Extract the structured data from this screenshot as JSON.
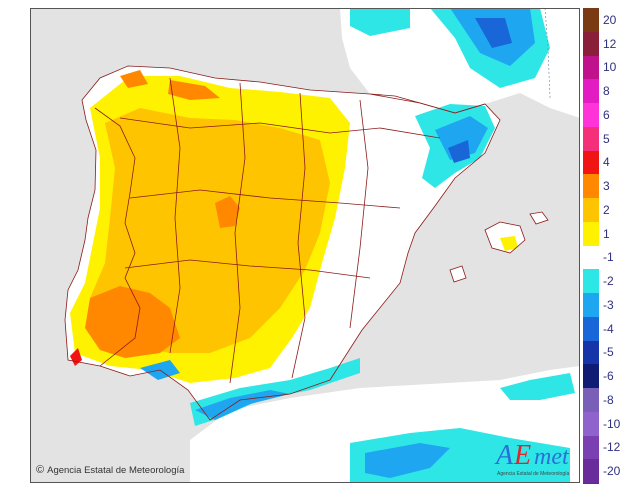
{
  "map": {
    "credit": "Agencia Estatal de Meteorología",
    "copyright_symbol": "©",
    "logo_text_a": "A",
    "logo_text_e": "E",
    "logo_text_met": "met",
    "logo_sub": "Agencia Estatal de Meteorología",
    "colors": {
      "sea": "#e3e3e3",
      "land_neutral": "#ffffff",
      "border": "#8b1a1a"
    }
  },
  "legend": {
    "items": [
      {
        "label": "20",
        "color": "#7a3b12"
      },
      {
        "label": "12",
        "color": "#8a1f3a"
      },
      {
        "label": "10",
        "color": "#c0128c"
      },
      {
        "label": "8",
        "color": "#e21cc2"
      },
      {
        "label": "6",
        "color": "#ff33d8"
      },
      {
        "label": "5",
        "color": "#f5307a"
      },
      {
        "label": "4",
        "color": "#f01414"
      },
      {
        "label": "3",
        "color": "#ff8800"
      },
      {
        "label": "2",
        "color": "#ffc400"
      },
      {
        "label": "1",
        "color": "#fff200"
      },
      {
        "label": "-1",
        "color": "#ffffff"
      },
      {
        "label": "-2",
        "color": "#2fe6e6"
      },
      {
        "label": "-3",
        "color": "#1ea7f0"
      },
      {
        "label": "-4",
        "color": "#1866d8"
      },
      {
        "label": "-5",
        "color": "#1535a8"
      },
      {
        "label": "-6",
        "color": "#101c73"
      },
      {
        "label": "-8",
        "color": "#7a5fb8"
      },
      {
        "label": "-10",
        "color": "#8f63cb"
      },
      {
        "label": "-12",
        "color": "#7a3fb0"
      },
      {
        "label": "-20",
        "color": "#6a2c9a"
      }
    ]
  }
}
